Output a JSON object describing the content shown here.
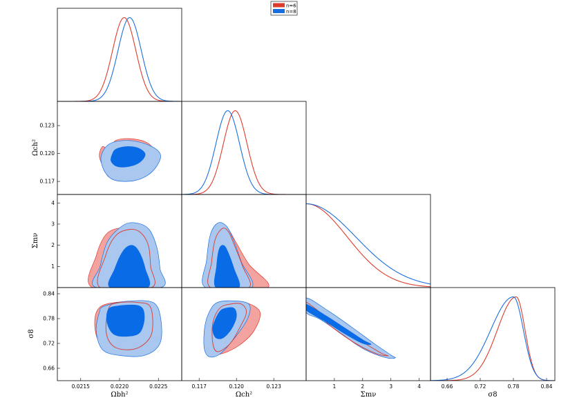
{
  "colors": {
    "n6_line": "#de3b2c",
    "n6_fill": "#f2a3a0",
    "n8_line": "#1a6fe0",
    "n8_outer": "#a9c7ef",
    "n8_inner": "#0a6be6"
  },
  "legend": {
    "items": [
      {
        "label": "n=6",
        "color": "#de3b2c"
      },
      {
        "label": "n=8",
        "color": "#1a6fe0"
      }
    ]
  },
  "axis_labels": {
    "ombh2": "Ωbh²",
    "omch2": "Ωch²",
    "mnu": "Σmν",
    "sigma8": "σ8"
  },
  "chart_data": {
    "type": "triangle",
    "title": "",
    "parameters": [
      {
        "name": "ombh2",
        "label": "Ωbh²",
        "range": [
          0.0212,
          0.0228
        ],
        "ticks": [
          "0.0215",
          "0.0220",
          "0.0225"
        ],
        "tick_values": [
          0.0215,
          0.022,
          0.0225
        ]
      },
      {
        "name": "omch2",
        "label": "Ωch²",
        "range": [
          0.1156,
          0.1256
        ],
        "ticks": [
          "0.117",
          "0.120",
          "0.123"
        ],
        "tick_values": [
          0.117,
          0.12,
          0.123
        ]
      },
      {
        "name": "mnu",
        "label": "Σmν",
        "range": [
          0,
          4.4
        ],
        "ticks": [
          "1",
          "2",
          "3",
          "4"
        ],
        "tick_values": [
          1,
          2,
          3,
          4
        ]
      },
      {
        "name": "sigma8",
        "label": "σ8",
        "range": [
          0.63,
          0.855
        ],
        "ticks": [
          "0.66",
          "0.72",
          "0.78",
          "0.84"
        ],
        "tick_values": [
          0.66,
          0.72,
          0.78,
          0.84
        ]
      }
    ],
    "series": [
      {
        "name": "n=6",
        "marginals": {
          "ombh2": {
            "type": "gauss",
            "mean": 0.02206,
            "sigma": 0.00015
          },
          "omch2": {
            "type": "gauss",
            "mean": 0.1199,
            "sigma": 0.00095
          },
          "mnu": {
            "type": "halfgauss",
            "sigma": 1.45
          },
          "sigma8": {
            "type": "skew",
            "mode": 0.785,
            "sigma_left": 0.034,
            "sigma_right": 0.016
          }
        }
      },
      {
        "name": "n=8",
        "marginals": {
          "ombh2": {
            "type": "gauss",
            "mean": 0.02213,
            "sigma": 0.00015
          },
          "omch2": {
            "type": "gauss",
            "mean": 0.1193,
            "sigma": 0.00095
          },
          "mnu": {
            "type": "halfgauss",
            "sigma": 1.75
          },
          "sigma8": {
            "type": "skew",
            "mode": 0.78,
            "sigma_left": 0.041,
            "sigma_right": 0.018
          }
        }
      }
    ],
    "contours": [
      {
        "x": "ombh2",
        "y": "omch2",
        "n6_68": [
          [
            0.02202,
            0.11975
          ],
          [
            0.02211,
            0.11985
          ],
          [
            0.02222,
            0.1201
          ],
          [
            0.02228,
            0.12005
          ],
          [
            0.02229,
            0.11985
          ],
          [
            0.02221,
            0.11935
          ],
          [
            0.02208,
            0.11885
          ],
          [
            0.02199,
            0.11875
          ],
          [
            0.02193,
            0.11898
          ],
          [
            0.02195,
            0.1194
          ]
        ],
        "n6_95": [
          [
            0.02186,
            0.12045
          ],
          [
            0.02195,
            0.1214
          ],
          [
            0.02212,
            0.1216
          ],
          [
            0.02232,
            0.1213
          ],
          [
            0.02243,
            0.12055
          ],
          [
            0.02243,
            0.11955
          ],
          [
            0.0223,
            0.11815
          ],
          [
            0.0221,
            0.1175
          ],
          [
            0.02188,
            0.1174
          ],
          [
            0.0218,
            0.1184
          ],
          [
            0.02174,
            0.1197
          ],
          [
            0.02178,
            0.12075
          ]
        ],
        "n8_68": [
          [
            0.02191,
            0.12
          ],
          [
            0.02196,
            0.1205
          ],
          [
            0.0221,
            0.12075
          ],
          [
            0.02225,
            0.12055
          ],
          [
            0.02233,
            0.1199
          ],
          [
            0.02226,
            0.11905
          ],
          [
            0.02212,
            0.1186
          ],
          [
            0.02197,
            0.1186
          ],
          [
            0.02189,
            0.1192
          ]
        ],
        "n8_95": [
          [
            0.0218,
            0.12045
          ],
          [
            0.0219,
            0.12115
          ],
          [
            0.0221,
            0.1214
          ],
          [
            0.02233,
            0.12105
          ],
          [
            0.0225,
            0.12025
          ],
          [
            0.02252,
            0.1193
          ],
          [
            0.0224,
            0.1179
          ],
          [
            0.0222,
            0.1171
          ],
          [
            0.02195,
            0.1171
          ],
          [
            0.02182,
            0.1179
          ],
          [
            0.02176,
            0.11935
          ]
        ]
      },
      {
        "x": "ombh2",
        "y": "mnu",
        "n6_68": [
          [
            0.02175,
            0.0
          ],
          [
            0.02182,
            1.5
          ],
          [
            0.02195,
            2.45
          ],
          [
            0.02213,
            2.75
          ],
          [
            0.02227,
            2.6
          ],
          [
            0.02237,
            2.0
          ],
          [
            0.0224,
            1.0
          ],
          [
            0.02241,
            0.0
          ]
        ],
        "n6_95": [
          [
            0.02165,
            0.0
          ],
          [
            0.0217,
            1.5
          ],
          [
            0.02185,
            2.6
          ],
          [
            0.02213,
            2.85
          ],
          [
            0.02235,
            2.7
          ],
          [
            0.02245,
            2.0
          ],
          [
            0.02248,
            1.0
          ],
          [
            0.0225,
            0.0
          ]
        ],
        "n8_68": [
          [
            0.02188,
            0.0
          ],
          [
            0.02194,
            0.9
          ],
          [
            0.02205,
            1.75
          ],
          [
            0.02216,
            2.0
          ],
          [
            0.02225,
            1.7
          ],
          [
            0.02233,
            0.9
          ],
          [
            0.02236,
            0.0
          ]
        ],
        "n8_95": [
          [
            0.0217,
            0.0
          ],
          [
            0.02175,
            1.0
          ],
          [
            0.02185,
            2.2
          ],
          [
            0.02205,
            2.95
          ],
          [
            0.02222,
            3.05
          ],
          [
            0.02238,
            2.75
          ],
          [
            0.02248,
            1.9
          ],
          [
            0.02252,
            0.9
          ],
          [
            0.02253,
            0.0
          ]
        ]
      },
      {
        "x": "ombh2",
        "y": "sigma8",
        "n6_68": [
          [
            0.02198,
            0.818
          ],
          [
            0.02223,
            0.819
          ],
          [
            0.0224,
            0.807
          ],
          [
            0.02241,
            0.742
          ],
          [
            0.02222,
            0.708
          ],
          [
            0.02195,
            0.71
          ],
          [
            0.02183,
            0.745
          ],
          [
            0.02186,
            0.805
          ]
        ],
        "n6_95": [
          [
            0.02175,
            0.808
          ],
          [
            0.022,
            0.82
          ],
          [
            0.02235,
            0.819
          ],
          [
            0.0225,
            0.79
          ],
          [
            0.02253,
            0.73
          ],
          [
            0.02235,
            0.699
          ],
          [
            0.022,
            0.699
          ],
          [
            0.02175,
            0.72
          ],
          [
            0.02168,
            0.77
          ]
        ],
        "n8_68": [
          [
            0.02195,
            0.81
          ],
          [
            0.02225,
            0.811
          ],
          [
            0.02232,
            0.785
          ],
          [
            0.02226,
            0.746
          ],
          [
            0.02208,
            0.737
          ],
          [
            0.02192,
            0.743
          ],
          [
            0.02184,
            0.77
          ],
          [
            0.02185,
            0.8
          ]
        ],
        "n8_95": [
          [
            0.0218,
            0.81
          ],
          [
            0.0221,
            0.822
          ],
          [
            0.02243,
            0.819
          ],
          [
            0.02253,
            0.78
          ],
          [
            0.02252,
            0.72
          ],
          [
            0.02232,
            0.691
          ],
          [
            0.022,
            0.691
          ],
          [
            0.02178,
            0.705
          ],
          [
            0.0217,
            0.75
          ],
          [
            0.02174,
            0.795
          ]
        ]
      },
      {
        "x": "omch2",
        "y": "mnu",
        "n6_68": [
          [
            0.1179,
            0.0
          ],
          [
            0.118,
            1.2
          ],
          [
            0.1183,
            2.3
          ],
          [
            0.1189,
            2.8
          ],
          [
            0.1194,
            2.6
          ],
          [
            0.1199,
            1.9
          ],
          [
            0.1205,
            1.0
          ],
          [
            0.121,
            0.0
          ]
        ],
        "n6_95": [
          [
            0.1177,
            0.0
          ],
          [
            0.1178,
            1.5
          ],
          [
            0.1182,
            2.7
          ],
          [
            0.1187,
            3.0
          ],
          [
            0.1193,
            2.8
          ],
          [
            0.12,
            2.1
          ],
          [
            0.121,
            1.1
          ],
          [
            0.1225,
            0.0
          ]
        ],
        "n8_68": [
          [
            0.11835,
            0.0
          ],
          [
            0.1184,
            1.0
          ],
          [
            0.1186,
            1.8
          ],
          [
            0.11895,
            2.0
          ],
          [
            0.1193,
            1.7
          ],
          [
            0.1198,
            0.9
          ],
          [
            0.1202,
            0.0
          ]
        ],
        "n8_95": [
          [
            0.1175,
            0.0
          ],
          [
            0.1176,
            1.3
          ],
          [
            0.1179,
            2.5
          ],
          [
            0.1185,
            3.05
          ],
          [
            0.1192,
            2.9
          ],
          [
            0.1198,
            2.2
          ],
          [
            0.1204,
            1.2
          ],
          [
            0.1212,
            0.0
          ]
        ]
      },
      {
        "x": "omch2",
        "y": "sigma8",
        "n6_68": [
          [
            0.11865,
            0.805
          ],
          [
            0.1195,
            0.815
          ],
          [
            0.1204,
            0.815
          ],
          [
            0.1208,
            0.795
          ],
          [
            0.1203,
            0.76
          ],
          [
            0.1195,
            0.72
          ],
          [
            0.1185,
            0.7
          ],
          [
            0.1181,
            0.72
          ],
          [
            0.1181,
            0.77
          ]
        ],
        "n6_95": [
          [
            0.1182,
            0.8
          ],
          [
            0.1193,
            0.818
          ],
          [
            0.1208,
            0.818
          ],
          [
            0.1219,
            0.795
          ],
          [
            0.1214,
            0.75
          ],
          [
            0.1202,
            0.715
          ],
          [
            0.1188,
            0.695
          ],
          [
            0.118,
            0.698
          ],
          [
            0.1177,
            0.73
          ],
          [
            0.1178,
            0.77
          ]
        ],
        "n8_68": [
          [
            0.1186,
            0.795
          ],
          [
            0.1191,
            0.805
          ],
          [
            0.1198,
            0.805
          ],
          [
            0.12,
            0.785
          ],
          [
            0.1196,
            0.755
          ],
          [
            0.1189,
            0.733
          ],
          [
            0.1183,
            0.735
          ],
          [
            0.1181,
            0.76
          ]
        ],
        "n8_95": [
          [
            0.1178,
            0.795
          ],
          [
            0.1184,
            0.818
          ],
          [
            0.1196,
            0.823
          ],
          [
            0.121,
            0.815
          ],
          [
            0.1209,
            0.78
          ],
          [
            0.1199,
            0.735
          ],
          [
            0.1187,
            0.695
          ],
          [
            0.1178,
            0.688
          ],
          [
            0.1174,
            0.71
          ],
          [
            0.11745,
            0.76
          ]
        ]
      },
      {
        "x": "mnu",
        "y": "sigma8",
        "n6_68": [
          [
            0.0,
            0.82
          ],
          [
            0.6,
            0.79
          ],
          [
            1.4,
            0.75
          ],
          [
            2.2,
            0.715
          ],
          [
            2.7,
            0.695
          ],
          [
            2.9,
            0.69
          ],
          [
            2.5,
            0.695
          ],
          [
            1.8,
            0.718
          ],
          [
            1.0,
            0.755
          ],
          [
            0.3,
            0.795
          ],
          [
            0.0,
            0.808
          ]
        ],
        "n6_95": [
          [
            0.0,
            0.827
          ],
          [
            0.8,
            0.795
          ],
          [
            1.6,
            0.756
          ],
          [
            2.4,
            0.716
          ],
          [
            2.9,
            0.693
          ],
          [
            3.0,
            0.688
          ],
          [
            2.7,
            0.688
          ],
          [
            2.0,
            0.708
          ],
          [
            1.2,
            0.745
          ],
          [
            0.5,
            0.78
          ],
          [
            0.0,
            0.803
          ]
        ],
        "n8_68": [
          [
            0.0,
            0.815
          ],
          [
            0.7,
            0.787
          ],
          [
            1.4,
            0.756
          ],
          [
            2.0,
            0.729
          ],
          [
            2.3,
            0.718
          ],
          [
            2.0,
            0.72
          ],
          [
            1.4,
            0.742
          ],
          [
            0.7,
            0.772
          ],
          [
            0.0,
            0.8
          ]
        ],
        "n8_95": [
          [
            0.0,
            0.83
          ],
          [
            0.8,
            0.798
          ],
          [
            1.6,
            0.76
          ],
          [
            2.4,
            0.72
          ],
          [
            3.0,
            0.692
          ],
          [
            3.15,
            0.685
          ],
          [
            2.8,
            0.686
          ],
          [
            2.0,
            0.708
          ],
          [
            1.2,
            0.746
          ],
          [
            0.5,
            0.778
          ],
          [
            0.0,
            0.795
          ]
        ]
      }
    ]
  }
}
